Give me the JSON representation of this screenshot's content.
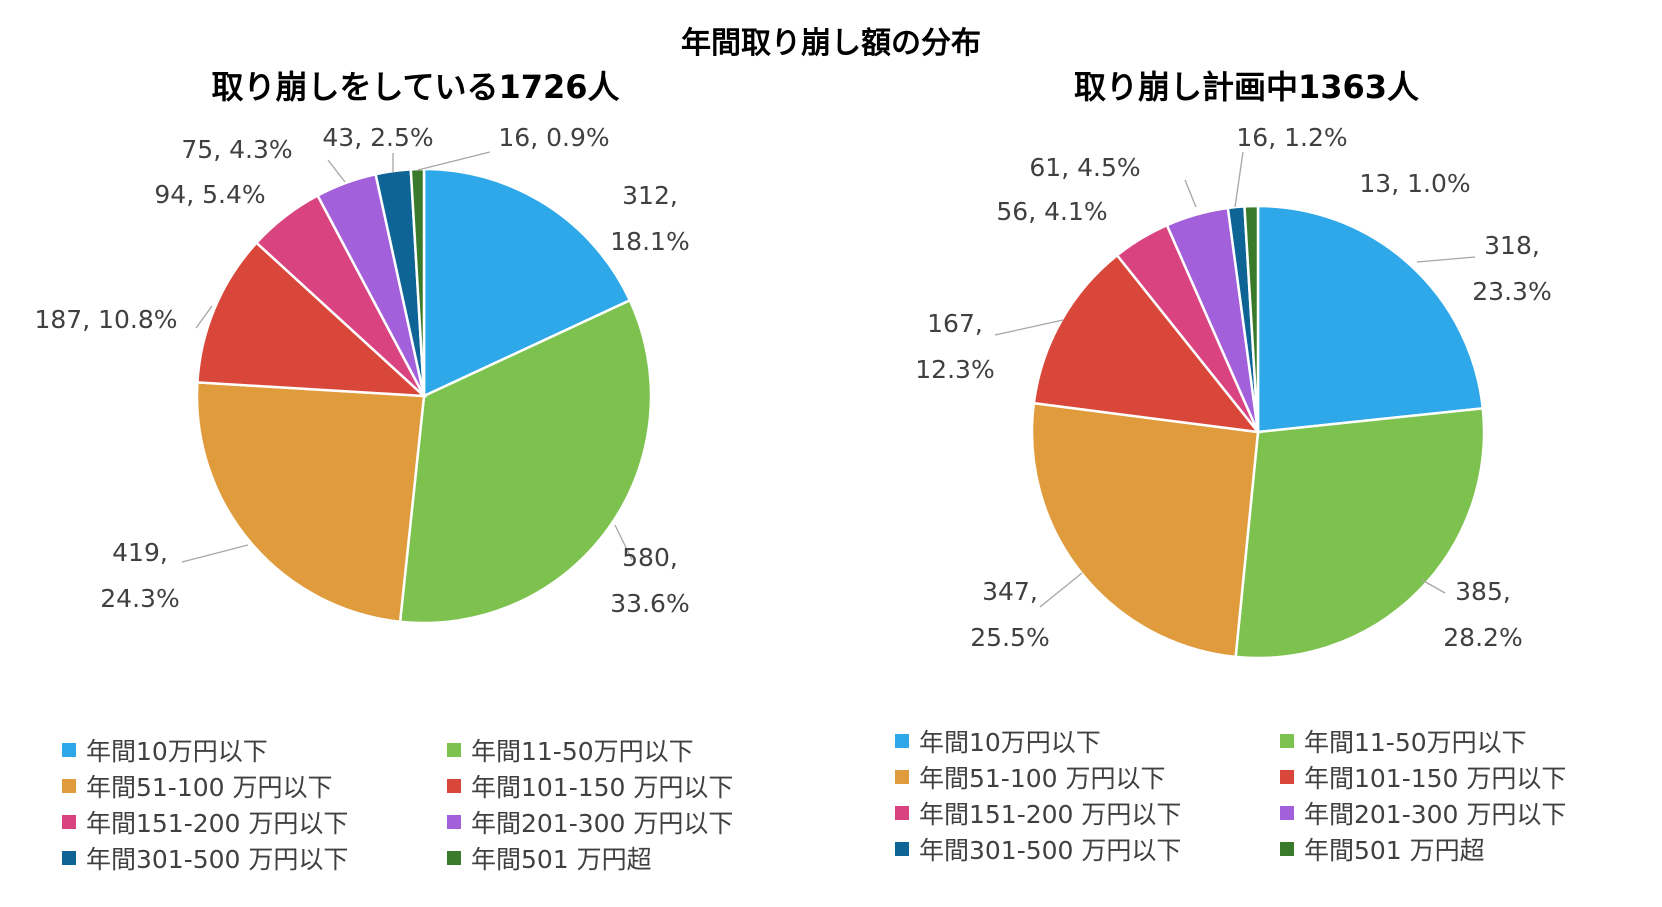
{
  "title": "年間取り崩し額の分布",
  "legend_labels": [
    "年間10万円以下",
    "年間11-50万円以下",
    "年間51-100 万円以下",
    "年間101-150 万円以下",
    "年間151-200 万円以下",
    "年間201-300 万円以下",
    "年間301-500 万円以下",
    "年間501 万円超"
  ],
  "colors": [
    "#2EA8E8",
    "#7DC24E",
    "#E09B3D",
    "#D9473A",
    "#D9437F",
    "#A260DB",
    "#0E6595",
    "#3A7A2B"
  ],
  "chart_data": [
    {
      "type": "pie",
      "title": "取り崩しをしている1726人",
      "categories": [
        "年間10万円以下",
        "年間11-50万円以下",
        "年間51-100 万円以下",
        "年間101-150 万円以下",
        "年間151-200 万円以下",
        "年間201-300 万円以下",
        "年間301-500 万円以下",
        "年間501 万円超"
      ],
      "values": [
        312,
        580,
        419,
        187,
        94,
        75,
        43,
        16
      ],
      "percents": [
        "18.1%",
        "33.6%",
        "24.3%",
        "10.8%",
        "5.4%",
        "4.3%",
        "2.5%",
        "0.9%"
      ],
      "data_labels": [
        [
          "312,",
          "18.1%"
        ],
        [
          "580,",
          "33.6%"
        ],
        [
          "419,",
          "24.3%"
        ],
        [
          "187, 10.8%"
        ],
        [
          "94, 5.4%"
        ],
        [
          "75, 4.3%"
        ],
        [
          "43, 2.5%"
        ],
        [
          "16, 0.9%"
        ]
      ],
      "legend_position": "bottom"
    },
    {
      "type": "pie",
      "title": "取り崩し計画中1363人",
      "categories": [
        "年間10万円以下",
        "年間11-50万円以下",
        "年間51-100 万円以下",
        "年間101-150 万円以下",
        "年間151-200 万円以下",
        "年間201-300 万円以下",
        "年間301-500 万円以下",
        "年間501 万円超"
      ],
      "values": [
        318,
        385,
        347,
        167,
        56,
        61,
        16,
        13
      ],
      "percents": [
        "23.3%",
        "28.2%",
        "25.5%",
        "12.3%",
        "4.1%",
        "4.5%",
        "1.2%",
        "1.0%"
      ],
      "data_labels": [
        [
          "318,",
          "23.3%"
        ],
        [
          "385,",
          "28.2%"
        ],
        [
          "347,",
          "25.5%"
        ],
        [
          "167,",
          "12.3%"
        ],
        [
          "56, 4.1%"
        ],
        [
          "61, 4.5%"
        ],
        [
          "16, 1.2%"
        ],
        [
          "13, 1.0%"
        ]
      ],
      "legend_position": "bottom"
    }
  ]
}
